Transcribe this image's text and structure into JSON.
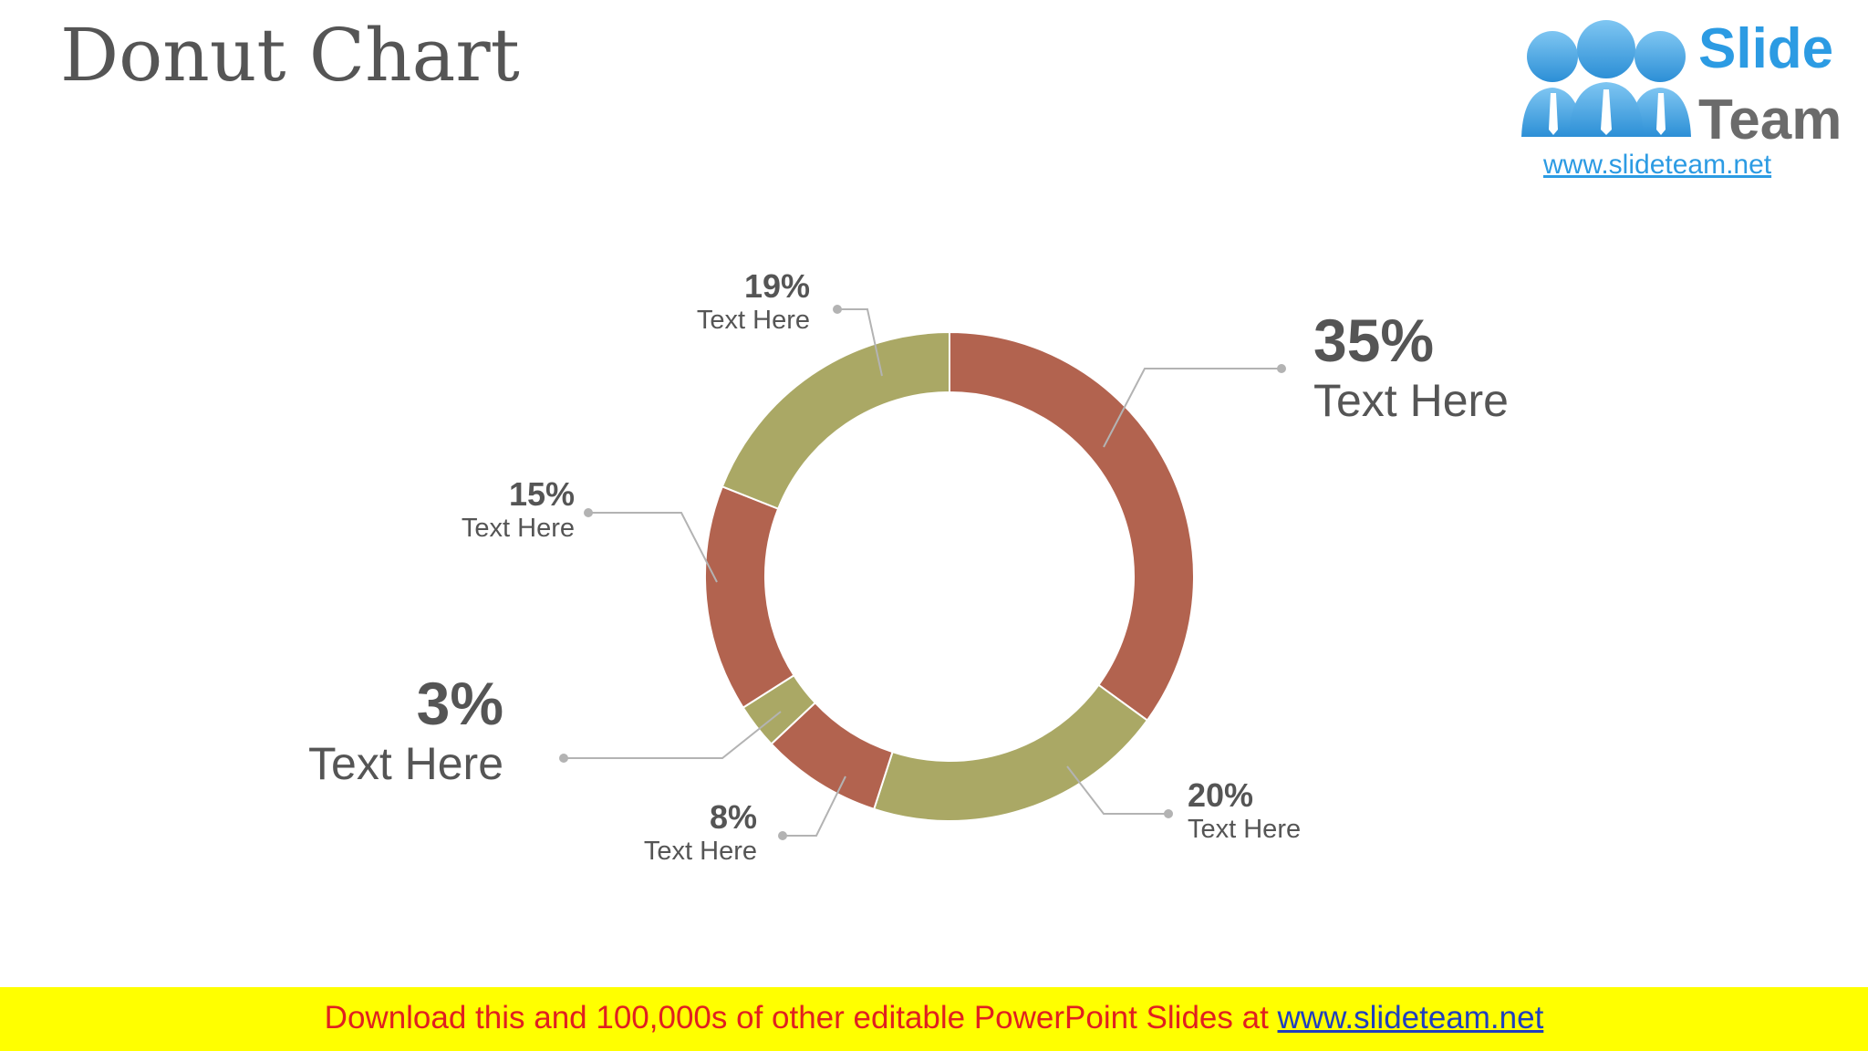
{
  "slide": {
    "title": "Donut Chart"
  },
  "logo": {
    "word1": "Slide",
    "word2": "Team",
    "url": "www.slideteam.net"
  },
  "banner": {
    "text": "Download this and 100,000s of other editable PowerPoint Slides at ",
    "link": "www.slideteam.net"
  },
  "colors": {
    "rust": "#b2634f",
    "olive": "#aaa865",
    "title": "#555555",
    "label": "#555555",
    "leader": "#b3b3b3",
    "banner_bg": "#ffff00",
    "banner_text": "#e02020",
    "logo_blue": "#2c9be3"
  },
  "chart_data": {
    "type": "pie",
    "style": "donut",
    "title": "",
    "slices": [
      {
        "value": 35,
        "pct_label": "35%",
        "label": "Text Here",
        "color": "#b2634f"
      },
      {
        "value": 20,
        "pct_label": "20%",
        "label": "Text Here",
        "color": "#aaa865"
      },
      {
        "value": 8,
        "pct_label": "8%",
        "label": "Text Here",
        "color": "#b2634f"
      },
      {
        "value": 3,
        "pct_label": "3%",
        "label": "Text Here",
        "color": "#aaa865"
      },
      {
        "value": 15,
        "pct_label": "15%",
        "label": "Text Here",
        "color": "#b2634f"
      },
      {
        "value": 19,
        "pct_label": "19%",
        "label": "Text Here",
        "color": "#aaa865"
      }
    ]
  }
}
